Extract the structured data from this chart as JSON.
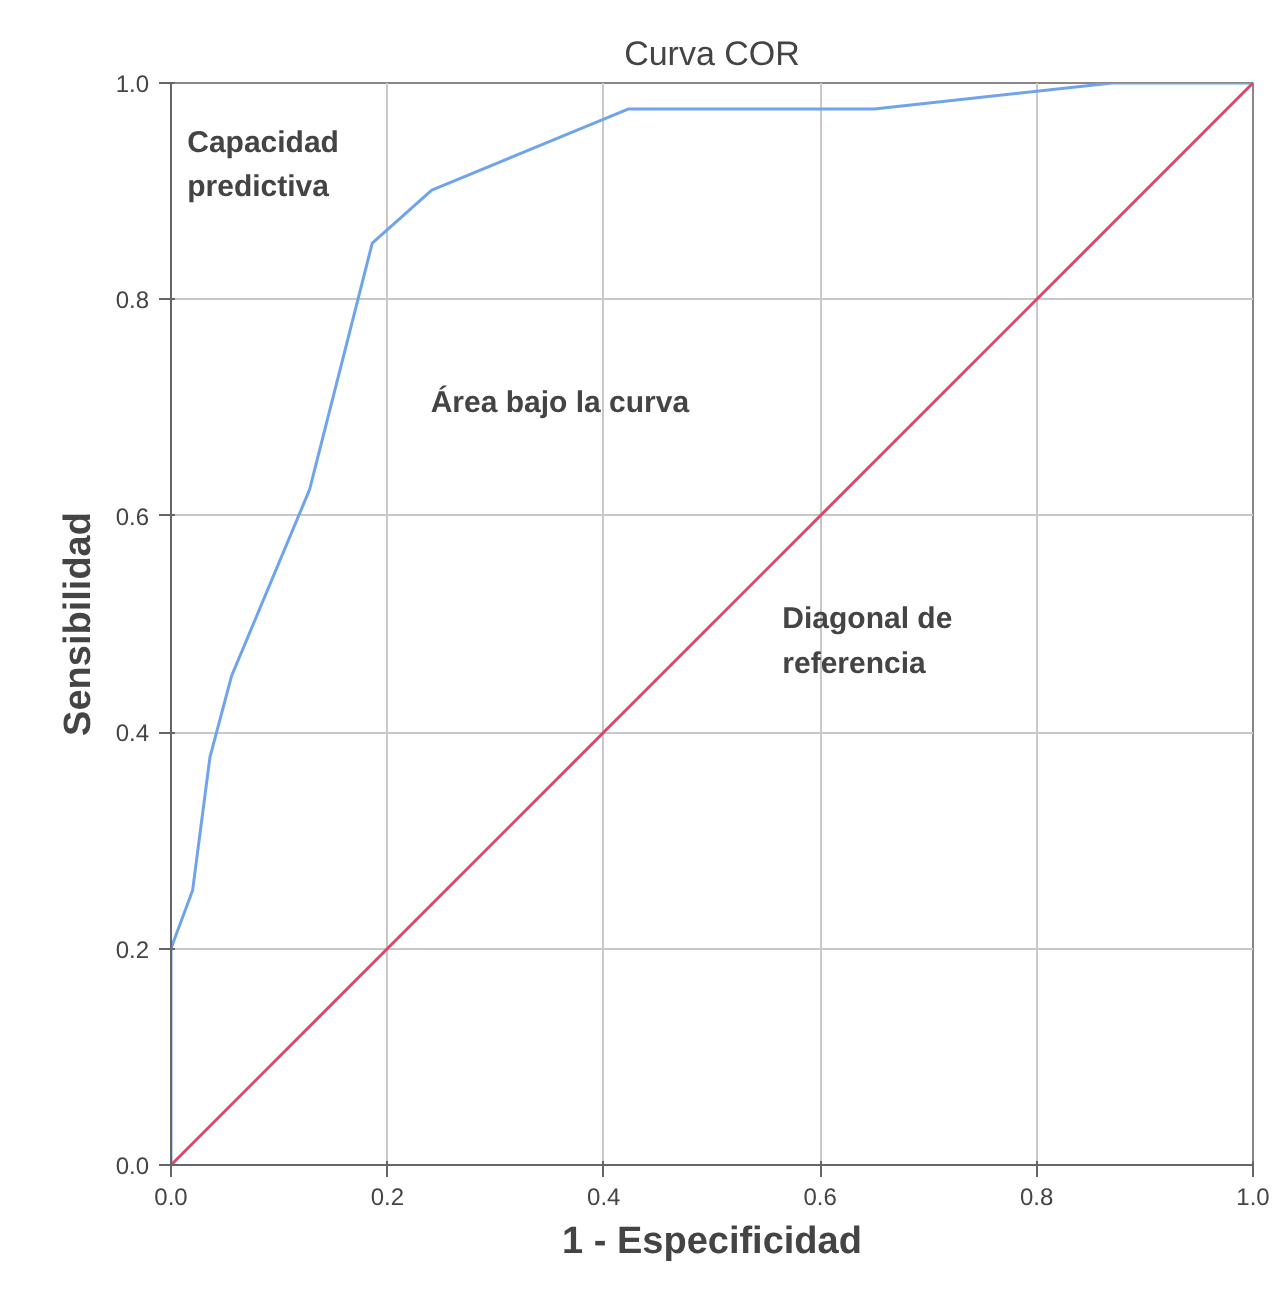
{
  "chart_data": {
    "type": "line",
    "title": "Curva COR",
    "xlabel": "1 - Especificidad",
    "ylabel": "Sensibilidad",
    "series": [
      {
        "color": "#6fa4ec",
        "x": [
          0,
          0,
          0.02,
          0.036,
          0.056,
          0.128,
          0.186,
          0.241,
          0.423,
          0.65,
          0.87,
          1
        ],
        "values": [
          0,
          0.2,
          0.254,
          0.377,
          0.452,
          0.624,
          0.852,
          0.901,
          0.976,
          0.976,
          1,
          1
        ]
      },
      {
        "color": "#e0456b",
        "x": [
          0,
          1
        ],
        "values": [
          0,
          1
        ]
      }
    ],
    "annotations": [
      "Capacidad predictiva",
      "Área bajo la curva",
      "Diagonal de referencia"
    ],
    "xlim": [
      0,
      1
    ],
    "ylim": [
      0,
      1
    ],
    "xticks": [
      {
        "value": 0,
        "label": "0.0"
      },
      0.2,
      0.4,
      0.6,
      0.8,
      {
        "value": 1,
        "label": "1.0"
      }
    ],
    "yticks": [
      {
        "value": 0,
        "label": "0.0"
      },
      0.2,
      0.4,
      0.6,
      0.8,
      {
        "value": 1,
        "label": "1.0"
      }
    ],
    "grid": true,
    "marker": "none",
    "line_style": "solid"
  }
}
